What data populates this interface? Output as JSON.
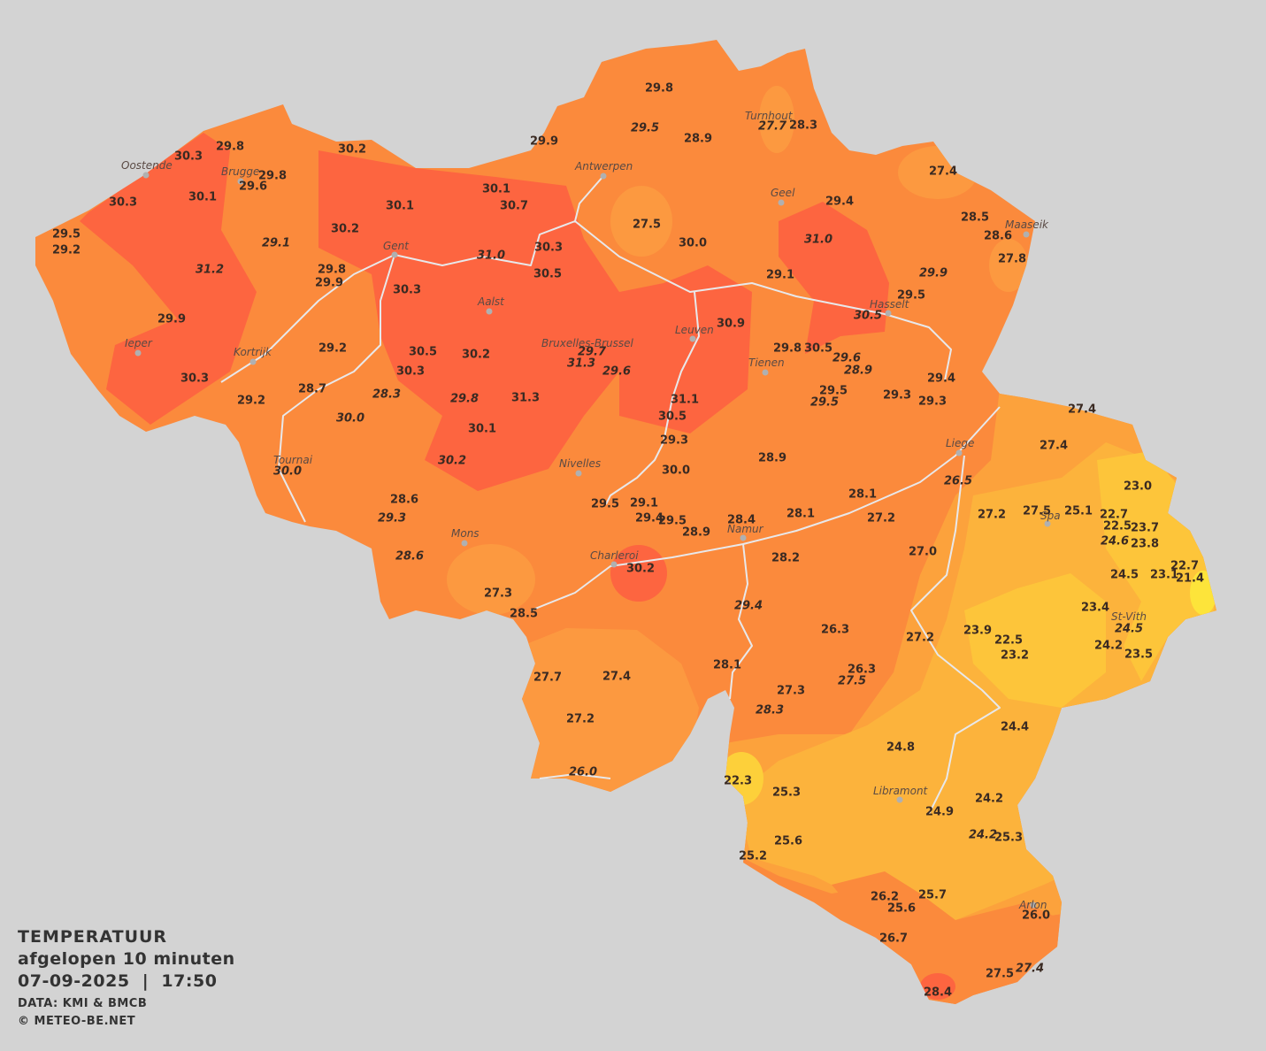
{
  "legend": {
    "title": "TEMPERATUUR",
    "subtitle": "afgelopen 10 minuten",
    "timestamp": "07-09-2025  |  17:50",
    "source": "DATA: KMI & BMCB",
    "copyright": "© METEO-BE.NET"
  },
  "cities": [
    "Oostende",
    "Brugge",
    "Gent",
    "Aalst",
    "Antwerpen",
    "Turnhout",
    "Geel",
    "Maaseik",
    "Hasselt",
    "Leuven",
    "Bruxelles-Brussel",
    "Tienen",
    "Ieper",
    "Kortrijk",
    "Tournai",
    "Nivelles",
    "Liege",
    "Spa",
    "Mons",
    "Charleroi",
    "Namur",
    "St-Vith",
    "Libramont",
    "Arlon"
  ],
  "readings": [
    "29.8",
    "29.5",
    "28.9",
    "27.7",
    "28.3",
    "29.9",
    "30.2",
    "29.8",
    "30.3",
    "29.8",
    "29.6",
    "30.1",
    "30.7",
    "30.1",
    "30.3",
    "30.1",
    "27.4",
    "29.4",
    "28.5",
    "28.6",
    "27.8",
    "27.5",
    "30.0",
    "31.0",
    "30.2",
    "29.5",
    "29.2",
    "29.1",
    "30.3",
    "31.0",
    "30.5",
    "29.8",
    "29.9",
    "31.2",
    "30.3",
    "29.1",
    "29.9",
    "29.5",
    "30.5",
    "30.9",
    "29.9",
    "29.2",
    "30.5",
    "30.2",
    "29.7",
    "31.3",
    "29.6",
    "30.3",
    "29.8",
    "30.5",
    "29.6",
    "28.9",
    "30.3",
    "29.4",
    "28.7",
    "28.3",
    "29.8",
    "31.3",
    "31.1",
    "29.5",
    "29.5",
    "29.3",
    "29.3",
    "29.2",
    "30.0",
    "30.5",
    "30.1",
    "27.4",
    "29.3",
    "27.4",
    "30.2",
    "28.9",
    "30.0",
    "30.0",
    "26.5",
    "23.0",
    "28.6",
    "28.1",
    "29.5",
    "29.1",
    "28.1",
    "27.2",
    "27.5",
    "25.1",
    "22.7",
    "29.3",
    "29.4",
    "29.5",
    "28.4",
    "27.2",
    "22.5",
    "23.7",
    "28.9",
    "24.6",
    "23.8",
    "28.6",
    "27.0",
    "28.2",
    "30.2",
    "22.7",
    "24.5",
    "23.1",
    "21.4",
    "27.3",
    "29.4",
    "23.4",
    "28.5",
    "24.5",
    "26.3",
    "23.9",
    "27.2",
    "22.5",
    "24.2",
    "23.2",
    "23.5",
    "28.1",
    "26.3",
    "27.7",
    "27.4",
    "27.5",
    "27.3",
    "28.3",
    "27.2",
    "24.4",
    "24.8",
    "26.0",
    "22.3",
    "25.3",
    "24.2",
    "24.9",
    "24.2",
    "25.3",
    "25.6",
    "25.2",
    "26.2",
    "25.7",
    "25.6",
    "26.0",
    "26.7",
    "27.5",
    "27.4",
    "28.4"
  ]
}
